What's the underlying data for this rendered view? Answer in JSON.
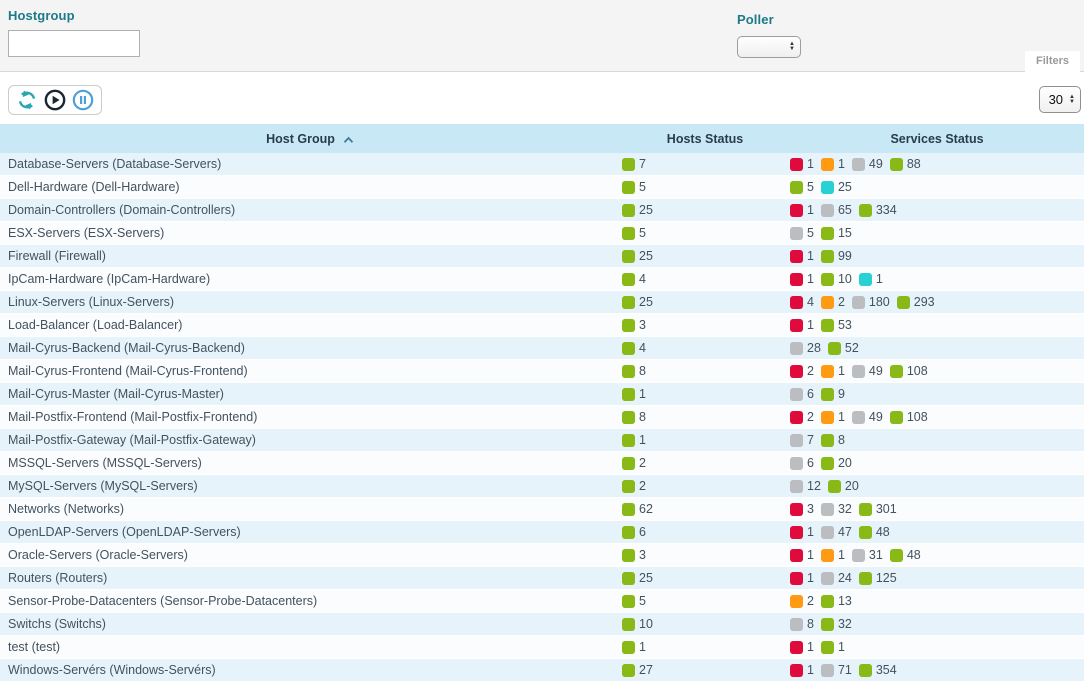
{
  "filters": {
    "hostgroup_label": "Hostgroup",
    "hostgroup_value": "",
    "poller_label": "Poller",
    "poller_value": "",
    "filters_tab_label": "Filters"
  },
  "toolbar": {
    "icons": [
      "refresh-icon",
      "play-icon",
      "pause-icon"
    ],
    "page_size": "30"
  },
  "status_colors": {
    "green": "#88b917",
    "red": "#e00b3d",
    "orange": "#ff9a13",
    "gray": "#bcbdc0",
    "cyan": "#2ad1d4"
  },
  "table": {
    "columns": {
      "0": "Host Group",
      "1": "Hosts Status",
      "2": "Services Status"
    },
    "sort_column": "Host Group",
    "sort_direction": "asc",
    "rows": [
      {
        "name": "Database-Servers (Database-Servers)",
        "hosts": [
          {
            "color": "green",
            "value": 7
          }
        ],
        "services": [
          {
            "color": "red",
            "value": 1
          },
          {
            "color": "orange",
            "value": 1
          },
          {
            "color": "gray",
            "value": 49
          },
          {
            "color": "green",
            "value": 88
          }
        ]
      },
      {
        "name": "Dell-Hardware (Dell-Hardware)",
        "hosts": [
          {
            "color": "green",
            "value": 5
          }
        ],
        "services": [
          {
            "color": "green",
            "value": 5
          },
          {
            "color": "cyan",
            "value": 25
          }
        ]
      },
      {
        "name": "Domain-Controllers (Domain-Controllers)",
        "hosts": [
          {
            "color": "green",
            "value": 25
          }
        ],
        "services": [
          {
            "color": "red",
            "value": 1
          },
          {
            "color": "gray",
            "value": 65
          },
          {
            "color": "green",
            "value": 334
          }
        ]
      },
      {
        "name": "ESX-Servers (ESX-Servers)",
        "hosts": [
          {
            "color": "green",
            "value": 5
          }
        ],
        "services": [
          {
            "color": "gray",
            "value": 5
          },
          {
            "color": "green",
            "value": 15
          }
        ]
      },
      {
        "name": "Firewall (Firewall)",
        "hosts": [
          {
            "color": "green",
            "value": 25
          }
        ],
        "services": [
          {
            "color": "red",
            "value": 1
          },
          {
            "color": "green",
            "value": 99
          }
        ]
      },
      {
        "name": "IpCam-Hardware (IpCam-Hardware)",
        "hosts": [
          {
            "color": "green",
            "value": 4
          }
        ],
        "services": [
          {
            "color": "red",
            "value": 1
          },
          {
            "color": "green",
            "value": 10
          },
          {
            "color": "cyan",
            "value": 1
          }
        ]
      },
      {
        "name": "Linux-Servers (Linux-Servers)",
        "hosts": [
          {
            "color": "green",
            "value": 25
          }
        ],
        "services": [
          {
            "color": "red",
            "value": 4
          },
          {
            "color": "orange",
            "value": 2
          },
          {
            "color": "gray",
            "value": 180
          },
          {
            "color": "green",
            "value": 293
          }
        ]
      },
      {
        "name": "Load-Balancer (Load-Balancer)",
        "hosts": [
          {
            "color": "green",
            "value": 3
          }
        ],
        "services": [
          {
            "color": "red",
            "value": 1
          },
          {
            "color": "green",
            "value": 53
          }
        ]
      },
      {
        "name": "Mail-Cyrus-Backend (Mail-Cyrus-Backend)",
        "hosts": [
          {
            "color": "green",
            "value": 4
          }
        ],
        "services": [
          {
            "color": "gray",
            "value": 28
          },
          {
            "color": "green",
            "value": 52
          }
        ]
      },
      {
        "name": "Mail-Cyrus-Frontend (Mail-Cyrus-Frontend)",
        "hosts": [
          {
            "color": "green",
            "value": 8
          }
        ],
        "services": [
          {
            "color": "red",
            "value": 2
          },
          {
            "color": "orange",
            "value": 1
          },
          {
            "color": "gray",
            "value": 49
          },
          {
            "color": "green",
            "value": 108
          }
        ]
      },
      {
        "name": "Mail-Cyrus-Master (Mail-Cyrus-Master)",
        "hosts": [
          {
            "color": "green",
            "value": 1
          }
        ],
        "services": [
          {
            "color": "gray",
            "value": 6
          },
          {
            "color": "green",
            "value": 9
          }
        ]
      },
      {
        "name": "Mail-Postfix-Frontend (Mail-Postfix-Frontend)",
        "hosts": [
          {
            "color": "green",
            "value": 8
          }
        ],
        "services": [
          {
            "color": "red",
            "value": 2
          },
          {
            "color": "orange",
            "value": 1
          },
          {
            "color": "gray",
            "value": 49
          },
          {
            "color": "green",
            "value": 108
          }
        ]
      },
      {
        "name": "Mail-Postfix-Gateway (Mail-Postfix-Gateway)",
        "hosts": [
          {
            "color": "green",
            "value": 1
          }
        ],
        "services": [
          {
            "color": "gray",
            "value": 7
          },
          {
            "color": "green",
            "value": 8
          }
        ]
      },
      {
        "name": "MSSQL-Servers (MSSQL-Servers)",
        "hosts": [
          {
            "color": "green",
            "value": 2
          }
        ],
        "services": [
          {
            "color": "gray",
            "value": 6
          },
          {
            "color": "green",
            "value": 20
          }
        ]
      },
      {
        "name": "MySQL-Servers (MySQL-Servers)",
        "hosts": [
          {
            "color": "green",
            "value": 2
          }
        ],
        "services": [
          {
            "color": "gray",
            "value": 12
          },
          {
            "color": "green",
            "value": 20
          }
        ]
      },
      {
        "name": "Networks (Networks)",
        "hosts": [
          {
            "color": "green",
            "value": 62
          }
        ],
        "services": [
          {
            "color": "red",
            "value": 3
          },
          {
            "color": "gray",
            "value": 32
          },
          {
            "color": "green",
            "value": 301
          }
        ]
      },
      {
        "name": "OpenLDAP-Servers (OpenLDAP-Servers)",
        "hosts": [
          {
            "color": "green",
            "value": 6
          }
        ],
        "services": [
          {
            "color": "red",
            "value": 1
          },
          {
            "color": "gray",
            "value": 47
          },
          {
            "color": "green",
            "value": 48
          }
        ]
      },
      {
        "name": "Oracle-Servers (Oracle-Servers)",
        "hosts": [
          {
            "color": "green",
            "value": 3
          }
        ],
        "services": [
          {
            "color": "red",
            "value": 1
          },
          {
            "color": "orange",
            "value": 1
          },
          {
            "color": "gray",
            "value": 31
          },
          {
            "color": "green",
            "value": 48
          }
        ]
      },
      {
        "name": "Routers (Routers)",
        "hosts": [
          {
            "color": "green",
            "value": 25
          }
        ],
        "services": [
          {
            "color": "red",
            "value": 1
          },
          {
            "color": "gray",
            "value": 24
          },
          {
            "color": "green",
            "value": 125
          }
        ]
      },
      {
        "name": "Sensor-Probe-Datacenters (Sensor-Probe-Datacenters)",
        "hosts": [
          {
            "color": "green",
            "value": 5
          }
        ],
        "services": [
          {
            "color": "orange",
            "value": 2
          },
          {
            "color": "green",
            "value": 13
          }
        ]
      },
      {
        "name": "Switchs (Switchs)",
        "hosts": [
          {
            "color": "green",
            "value": 10
          }
        ],
        "services": [
          {
            "color": "gray",
            "value": 8
          },
          {
            "color": "green",
            "value": 32
          }
        ]
      },
      {
        "name": "test (test)",
        "hosts": [
          {
            "color": "green",
            "value": 1
          }
        ],
        "services": [
          {
            "color": "red",
            "value": 1
          },
          {
            "color": "green",
            "value": 1
          }
        ]
      },
      {
        "name": "Windows-Servérs (Windows-Servérs)",
        "hosts": [
          {
            "color": "green",
            "value": 27
          }
        ],
        "services": [
          {
            "color": "red",
            "value": 1
          },
          {
            "color": "gray",
            "value": 71
          },
          {
            "color": "green",
            "value": 354
          }
        ]
      }
    ]
  }
}
